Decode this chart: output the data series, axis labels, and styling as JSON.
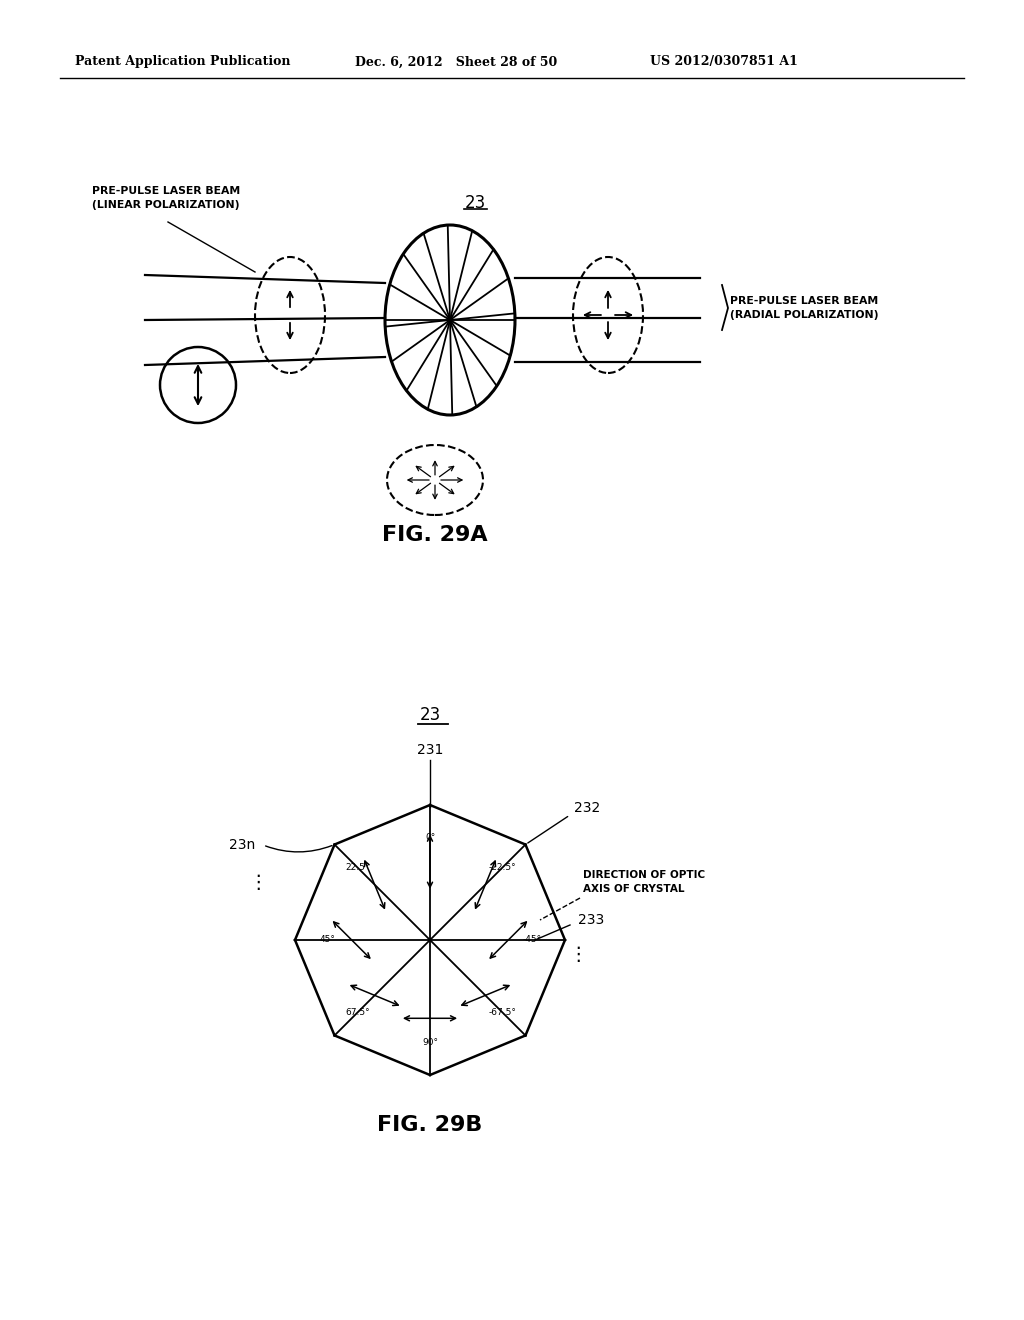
{
  "header_left": "Patent Application Publication",
  "header_mid": "Dec. 6, 2012   Sheet 28 of 50",
  "header_right": "US 2012/0307851 A1",
  "fig29a_label": "FIG. 29A",
  "fig29b_label": "FIG. 29B",
  "label_23_top": "23",
  "label_23_bottom": "23",
  "label_231": "231",
  "label_232": "232",
  "label_23n": "23n",
  "label_233": "233",
  "label_pre_pulse_linear": "PRE-PULSE LASER BEAM\n(LINEAR POLARIZATION)",
  "label_pre_pulse_radial": "PRE-PULSE LASER BEAM\n(RADIAL POLARIZATION)",
  "label_direction": "DIRECTION OF OPTIC\nAXIS OF CRYSTAL",
  "bg_color": "#ffffff",
  "line_color": "#000000"
}
